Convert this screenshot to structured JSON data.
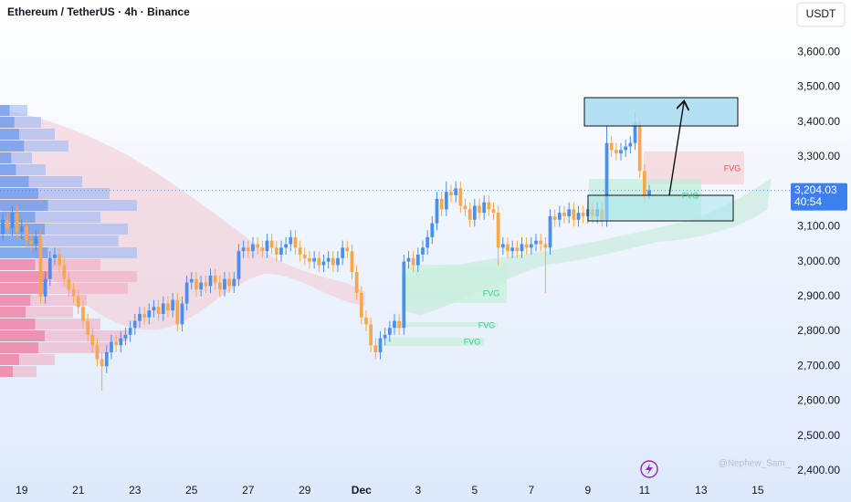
{
  "chart_data": {
    "type": "candlestick",
    "title": "Ethereum / TetherUS · 4h · Binance",
    "currency": "USDT",
    "watermark": "@Nephew_Sam_",
    "annotations": [
      "FVG",
      "FVG",
      "FVG",
      "FVG",
      "FVG"
    ],
    "last_price": {
      "value": 3204.03,
      "label": "3,204.03"
    },
    "countdown": "40:54",
    "up_color": "#4a8ff0",
    "down_color": "#f7a84a",
    "xlim": [
      -4.6,
      162.8
    ],
    "ylim": [
      2350,
      3750
    ],
    "xticks": [
      {
        "value": 0,
        "label": "19"
      },
      {
        "value": 12,
        "label": "21"
      },
      {
        "value": 24,
        "label": "23"
      },
      {
        "value": 36,
        "label": "25"
      },
      {
        "value": 48,
        "label": "27"
      },
      {
        "value": 60,
        "label": "29"
      },
      {
        "value": 72,
        "label": "Dec"
      },
      {
        "value": 84,
        "label": "3"
      },
      {
        "value": 96,
        "label": "5"
      },
      {
        "value": 108,
        "label": "7"
      },
      {
        "value": 120,
        "label": "9"
      },
      {
        "value": 132,
        "label": "11"
      },
      {
        "value": 144,
        "label": "13"
      },
      {
        "value": 156,
        "label": "15"
      }
    ],
    "yticks": [
      {
        "value": 2400,
        "label": "2,400.00"
      },
      {
        "value": 2500,
        "label": "2,500.00"
      },
      {
        "value": 2600,
        "label": "2,600.00"
      },
      {
        "value": 2700,
        "label": "2,700.00"
      },
      {
        "value": 2800,
        "label": "2,800.00"
      },
      {
        "value": 2900,
        "label": "2,900.00"
      },
      {
        "value": 3000,
        "label": "3,000.00"
      },
      {
        "value": 3100,
        "label": "3,100.00"
      },
      {
        "value": 3200,
        "label": "3,200.00"
      },
      {
        "value": 3300,
        "label": "3,300.00"
      },
      {
        "value": 3400,
        "label": "3,400.00"
      },
      {
        "value": 3500,
        "label": "3,500.00"
      },
      {
        "value": 3600,
        "label": "3,600.00"
      }
    ],
    "x": [
      -4,
      -3,
      -2,
      -1,
      0,
      1,
      2,
      3,
      4,
      5,
      6,
      7,
      8,
      9,
      10,
      11,
      12,
      13,
      14,
      15,
      16,
      17,
      18,
      19,
      20,
      21,
      22,
      23,
      24,
      25,
      26,
      27,
      28,
      29,
      30,
      31,
      32,
      33,
      34,
      35,
      36,
      37,
      38,
      39,
      40,
      41,
      42,
      43,
      44,
      45,
      46,
      47,
      48,
      49,
      50,
      51,
      52,
      53,
      54,
      55,
      56,
      57,
      58,
      59,
      60,
      61,
      62,
      63,
      64,
      65,
      66,
      67,
      68,
      69,
      70,
      71,
      72,
      73,
      74,
      75,
      76,
      77,
      78,
      79,
      80,
      81,
      82,
      83,
      84,
      85,
      86,
      87,
      88,
      89,
      90,
      91,
      92,
      93,
      94,
      95,
      96,
      97,
      98,
      99,
      100,
      101,
      102,
      103,
      104,
      105,
      106,
      107,
      108,
      109,
      110,
      111,
      112,
      113,
      114,
      115,
      116,
      117,
      118,
      119,
      120,
      121,
      122,
      123,
      124,
      125,
      126,
      127,
      128,
      129,
      130,
      131,
      132,
      133
    ],
    "open": [
      3080,
      3120,
      3095,
      3140,
      3085,
      3100,
      3060,
      3050,
      3070,
      2900,
      2950,
      3010,
      3020,
      2990,
      2950,
      2920,
      2900,
      2870,
      2830,
      2790,
      2760,
      2720,
      2700,
      2740,
      2770,
      2760,
      2780,
      2790,
      2810,
      2830,
      2850,
      2840,
      2860,
      2870,
      2850,
      2880,
      2860,
      2890,
      2820,
      2880,
      2940,
      2950,
      2920,
      2940,
      2930,
      2960,
      2940,
      2920,
      2950,
      2930,
      2950,
      3030,
      3040,
      3030,
      3050,
      3040,
      3030,
      3060,
      3040,
      3020,
      3040,
      3050,
      3070,
      3040,
      3020,
      3010,
      3000,
      3010,
      2990,
      3000,
      3010,
      2990,
      3010,
      3040,
      3030,
      2970,
      2910,
      2840,
      2820,
      2760,
      2740,
      2780,
      2790,
      2810,
      2830,
      2810,
      3000,
      3010,
      2990,
      3020,
      3040,
      3070,
      3110,
      3180,
      3150,
      3200,
      3190,
      3210,
      3160,
      3150,
      3120,
      3160,
      3140,
      3170,
      3150,
      3140,
      3040,
      3050,
      3030,
      3040,
      3030,
      3050,
      3040,
      3050,
      3060,
      3050,
      3040,
      3130,
      3120,
      3140,
      3130,
      3150,
      3120,
      3140,
      3130,
      3150,
      3130,
      3150,
      3120,
      3340,
      3320,
      3310,
      3320,
      3330,
      3340,
      3400,
      3260,
      3190
    ],
    "high": [
      3140,
      3140,
      3160,
      3160,
      3120,
      3120,
      3080,
      3090,
      3090,
      2970,
      3030,
      3040,
      3040,
      3010,
      2970,
      2940,
      2920,
      2890,
      2850,
      2810,
      2780,
      2740,
      2760,
      2790,
      2790,
      2800,
      2810,
      2830,
      2850,
      2870,
      2870,
      2880,
      2890,
      2890,
      2900,
      2900,
      2910,
      2910,
      2900,
      2960,
      2970,
      2970,
      2960,
      2960,
      2980,
      2980,
      2960,
      2970,
      2970,
      2970,
      3050,
      3060,
      3060,
      3070,
      3070,
      3060,
      3080,
      3080,
      3060,
      3060,
      3070,
      3090,
      3090,
      3060,
      3040,
      3030,
      3030,
      3030,
      3020,
      3030,
      3030,
      3030,
      3060,
      3060,
      3050,
      2990,
      2930,
      2860,
      2840,
      2780,
      2800,
      2810,
      2830,
      2850,
      2850,
      3020,
      3030,
      3030,
      3040,
      3060,
      3090,
      3130,
      3200,
      3200,
      3230,
      3220,
      3230,
      3230,
      3180,
      3170,
      3180,
      3180,
      3190,
      3190,
      3170,
      3160,
      3070,
      3070,
      3060,
      3060,
      3070,
      3070,
      3070,
      3080,
      3080,
      3070,
      3150,
      3150,
      3160,
      3160,
      3170,
      3170,
      3160,
      3160,
      3170,
      3170,
      3170,
      3170,
      3390,
      3360,
      3340,
      3340,
      3350,
      3360,
      3430,
      3420,
      3280,
      3220
    ],
    "low": [
      3060,
      3075,
      3075,
      3065,
      3065,
      3040,
      3030,
      3030,
      2880,
      2880,
      2930,
      2990,
      2970,
      2930,
      2900,
      2880,
      2850,
      2810,
      2770,
      2740,
      2700,
      2630,
      2680,
      2720,
      2740,
      2740,
      2760,
      2770,
      2790,
      2810,
      2820,
      2820,
      2840,
      2830,
      2830,
      2840,
      2840,
      2800,
      2800,
      2860,
      2920,
      2900,
      2900,
      2910,
      2910,
      2920,
      2900,
      2900,
      2910,
      2910,
      2930,
      3010,
      3010,
      3010,
      3020,
      3010,
      3010,
      3020,
      3000,
      3000,
      3020,
      3030,
      3020,
      3000,
      2990,
      2980,
      2980,
      2970,
      2970,
      2980,
      2970,
      2970,
      2990,
      3010,
      2950,
      2890,
      2820,
      2800,
      2740,
      2720,
      2720,
      2760,
      2770,
      2790,
      2790,
      2790,
      2980,
      2970,
      2970,
      3000,
      3020,
      3050,
      3090,
      3130,
      3130,
      3170,
      3170,
      3140,
      3130,
      3100,
      3100,
      3120,
      3120,
      3130,
      3120,
      2990,
      3020,
      3010,
      3010,
      3010,
      3010,
      3020,
      3020,
      3030,
      3030,
      2910,
      3020,
      3100,
      3100,
      3110,
      3110,
      3100,
      3100,
      3110,
      3110,
      3110,
      3110,
      3100,
      3100,
      3300,
      3290,
      3290,
      3300,
      3310,
      3320,
      3240,
      3170,
      3180
    ],
    "close": [
      3120,
      3095,
      3140,
      3085,
      3100,
      3060,
      3050,
      3070,
      2900,
      2950,
      3010,
      3020,
      2990,
      2950,
      2920,
      2900,
      2870,
      2830,
      2790,
      2760,
      2720,
      2700,
      2740,
      2770,
      2760,
      2780,
      2790,
      2810,
      2830,
      2850,
      2840,
      2860,
      2870,
      2850,
      2880,
      2860,
      2890,
      2820,
      2880,
      2940,
      2950,
      2920,
      2940,
      2930,
      2960,
      2940,
      2920,
      2950,
      2930,
      2950,
      3030,
      3040,
      3030,
      3050,
      3040,
      3030,
      3060,
      3040,
      3020,
      3040,
      3050,
      3070,
      3040,
      3020,
      3010,
      3000,
      3010,
      2990,
      3000,
      3010,
      2990,
      3010,
      3040,
      3030,
      2970,
      2910,
      2840,
      2820,
      2760,
      2740,
      2780,
      2790,
      2810,
      2830,
      2810,
      3000,
      3010,
      2990,
      3020,
      3040,
      3070,
      3110,
      3180,
      3150,
      3200,
      3190,
      3210,
      3160,
      3150,
      3120,
      3160,
      3140,
      3170,
      3150,
      3140,
      3040,
      3050,
      3030,
      3040,
      3030,
      3050,
      3040,
      3050,
      3060,
      3050,
      3040,
      3130,
      3120,
      3140,
      3130,
      3150,
      3120,
      3140,
      3130,
      3150,
      3130,
      3150,
      3120,
      3340,
      3320,
      3310,
      3320,
      3330,
      3340,
      3400,
      3260,
      3190,
      3204
    ]
  }
}
